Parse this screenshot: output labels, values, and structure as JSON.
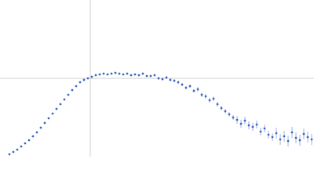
{
  "chart_data": {
    "type": "scatter",
    "xlim": [
      0,
      400
    ],
    "ylim": [
      0,
      200
    ],
    "reference_lines": {
      "x": 115,
      "y": 100
    },
    "color": "#3f66c0",
    "x": [
      12,
      17,
      22,
      27,
      32,
      37,
      42,
      47,
      52,
      57,
      62,
      67,
      72,
      77,
      82,
      87,
      92,
      97,
      102,
      107,
      112,
      117,
      122,
      127,
      132,
      137,
      142,
      147,
      152,
      157,
      162,
      167,
      172,
      177,
      182,
      187,
      192,
      197,
      202,
      207,
      212,
      217,
      222,
      227,
      232,
      237,
      242,
      247,
      252,
      257,
      262,
      267,
      272,
      277,
      282,
      287,
      292,
      297,
      302,
      307,
      312,
      317,
      322,
      327,
      332,
      337,
      342,
      347,
      352,
      357,
      362,
      367,
      372,
      377,
      382,
      387,
      392,
      397
    ],
    "values": [
      3,
      6,
      9,
      13,
      17,
      21,
      26,
      31,
      37,
      43,
      49,
      55,
      61,
      67,
      73,
      79,
      85,
      90,
      95,
      98,
      100,
      102,
      104,
      105,
      106,
      105,
      106,
      107,
      106,
      105,
      106,
      104,
      105,
      104,
      106,
      103,
      103,
      104,
      100,
      99,
      101,
      98,
      97,
      95,
      92,
      88,
      90,
      84,
      86,
      79,
      77,
      72,
      74,
      67,
      62,
      58,
      54,
      50,
      47,
      42,
      46,
      40,
      38,
      41,
      32,
      36,
      28,
      25,
      30,
      22,
      26,
      20,
      31,
      24,
      21,
      29,
      25,
      22
    ],
    "errors": [
      0.5,
      0.5,
      0.5,
      0.5,
      0.5,
      0.5,
      0.5,
      0.5,
      0.5,
      0.5,
      0.5,
      0.5,
      0.5,
      0.5,
      0.5,
      0.5,
      0.5,
      0.5,
      0.5,
      0.5,
      1,
      1,
      1,
      1,
      1,
      1,
      1,
      1,
      1,
      1,
      1,
      1,
      1,
      1,
      1,
      1,
      1,
      1,
      2,
      2,
      2,
      2,
      2,
      2,
      2,
      2,
      2,
      2,
      3,
      3,
      3,
      3,
      3,
      3,
      3,
      3,
      3,
      3,
      5,
      5,
      5,
      5,
      5,
      5,
      5,
      5,
      5,
      5,
      7,
      7,
      7,
      7,
      7,
      7,
      7,
      7,
      7,
      7
    ]
  }
}
